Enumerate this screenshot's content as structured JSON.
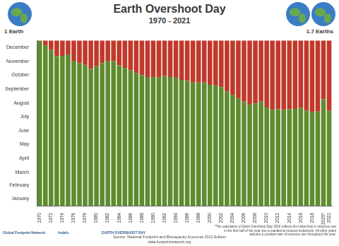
{
  "chart_data": {
    "type": "bar",
    "title": "Earth Overshoot Day",
    "subtitle": "1970 - 2021",
    "left_label": "1 Earth",
    "right_label": "1.7 Earths",
    "footnote": "*The calculation of Earth Overshoot Day 2020 reflects the initial drop in resource use in the first half of the year due to pandemic-induced lockdowns. All other years assume a constant rate of resource use throughout the year.",
    "source": "Source: National Footprint and Biocapacity Accounts 2021 Edition",
    "source_url": "data.footprintnetwork.org",
    "logos": [
      "Global Footprint Network",
      "fodafo",
      "EARTH OVERSHOOT DAY"
    ],
    "categories": [
      "1970",
      null,
      "1972",
      null,
      "1974",
      null,
      "1976",
      null,
      "1978",
      null,
      "1980",
      null,
      "1982",
      null,
      "1984",
      null,
      "1986",
      null,
      "1988",
      null,
      "1990",
      null,
      "1992",
      null,
      "1994",
      null,
      "1996",
      null,
      "1998",
      null,
      "2000",
      null,
      "2002",
      null,
      "2004",
      null,
      "2006",
      null,
      "2008",
      null,
      "2010",
      null,
      "2012",
      null,
      "2014",
      null,
      "2016",
      null,
      "2018",
      null,
      "2020*",
      "2021"
    ],
    "series": [
      {
        "color": "#5e8c2e",
        "values": [
          364,
          354,
          344,
          330,
          331,
          334,
          320,
          315,
          311,
          302,
          308,
          315,
          320,
          319,
          310,
          304,
          299,
          293,
          288,
          284,
          284,
          283,
          287,
          284,
          284,
          278,
          276,
          272,
          272,
          272,
          267,
          265,
          262,
          252,
          244,
          237,
          230,
          223,
          226,
          230,
          217,
          212,
          213,
          212,
          213,
          214,
          216,
          210,
          207,
          208,
          235,
          210
        ]
      },
      {
        "color": "#c0392b",
        "values": [
          1,
          11,
          21,
          35,
          34,
          31,
          45,
          50,
          54,
          63,
          57,
          50,
          45,
          46,
          55,
          61,
          66,
          72,
          77,
          81,
          81,
          82,
          78,
          81,
          81,
          87,
          89,
          93,
          93,
          93,
          98,
          100,
          103,
          113,
          121,
          128,
          135,
          142,
          139,
          135,
          148,
          153,
          152,
          153,
          152,
          151,
          149,
          155,
          158,
          157,
          130,
          155
        ]
      }
    ],
    "stacked": true,
    "grid": false,
    "ylim": [
      0,
      365
    ],
    "yticks": [
      {
        "value": 15,
        "label": "January"
      },
      {
        "value": 45,
        "label": "February"
      },
      {
        "value": 74,
        "label": "March"
      },
      {
        "value": 105,
        "label": "April"
      },
      {
        "value": 135,
        "label": "May"
      },
      {
        "value": 166,
        "label": "June"
      },
      {
        "value": 196,
        "label": "July"
      },
      {
        "value": 227,
        "label": "August"
      },
      {
        "value": 258,
        "label": "September"
      },
      {
        "value": 288,
        "label": "October"
      },
      {
        "value": 319,
        "label": "November"
      },
      {
        "value": 349,
        "label": "December"
      }
    ]
  }
}
